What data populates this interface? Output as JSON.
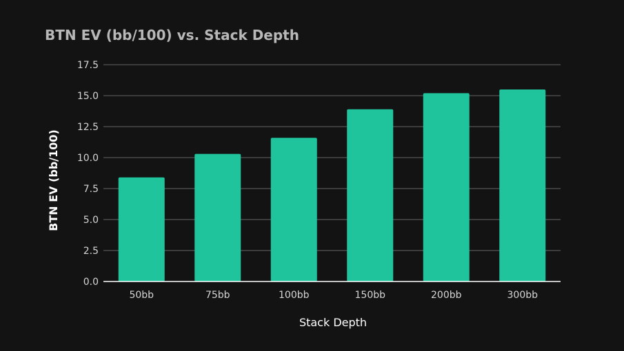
{
  "chart_data": {
    "type": "bar",
    "title": "BTN EV (bb/100) vs. Stack Depth",
    "xlabel": "Stack Depth",
    "ylabel": "BTN EV (bb/100)",
    "categories": [
      "50bb",
      "75bb",
      "100bb",
      "150bb",
      "200bb",
      "300bb"
    ],
    "values": [
      8.4,
      10.3,
      11.6,
      13.9,
      15.2,
      15.5
    ],
    "ylim": [
      0,
      17.5
    ],
    "yticks": [
      "0.0",
      "2.5",
      "5.0",
      "7.5",
      "10.0",
      "12.5",
      "15.0",
      "17.5"
    ],
    "grid": true,
    "bar_color": "#20c49c",
    "background": "#131313",
    "grid_color": "#666666"
  }
}
